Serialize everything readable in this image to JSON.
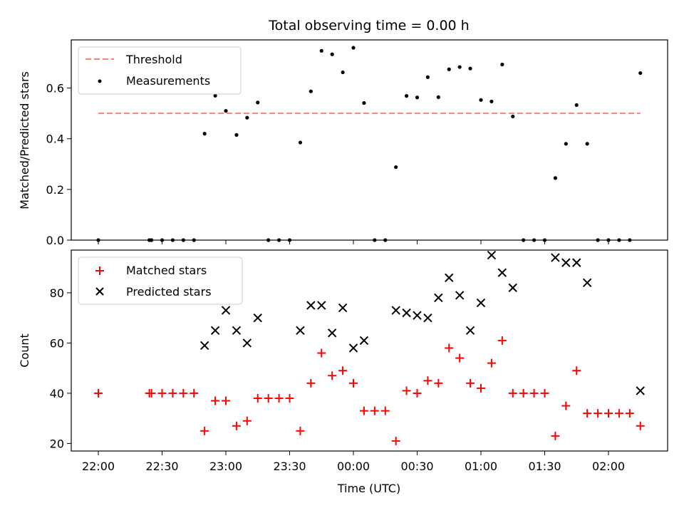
{
  "chart_data": {
    "type": "scatter",
    "title": "Total observing time = 0.00 h",
    "xlabel": "Time (UTC)",
    "x_tick_labels": [
      "22:00",
      "22:30",
      "23:00",
      "23:30",
      "00:00",
      "00:30",
      "01:00",
      "01:30",
      "02:00"
    ],
    "colors": {
      "threshold": "#ff7f7f",
      "measurements": "#000000",
      "matched": "#ff0000",
      "predicted": "#000000"
    },
    "panels": [
      {
        "ylabel": "Matched/Predicted stars",
        "ylim": [
          0,
          0.79
        ],
        "yticks": [
          0.0,
          0.2,
          0.4,
          0.6
        ],
        "ytick_labels": [
          "0.0",
          "0.2",
          "0.4",
          "0.6"
        ],
        "legend": [
          "Threshold",
          "Measurements"
        ],
        "legend_loc": "upper left",
        "threshold": {
          "name": "Threshold",
          "y": 0.5,
          "x_start": "22:00",
          "x_end": "02:15"
        },
        "series": [
          {
            "name": "Measurements",
            "marker": "dot",
            "points": [
              [
                "22:00",
                0.0
              ],
              [
                "22:24",
                0.0
              ],
              [
                "22:25",
                0.0
              ],
              [
                "22:30",
                0.0
              ],
              [
                "22:35",
                0.0
              ],
              [
                "22:40",
                0.0
              ],
              [
                "22:45",
                0.0
              ],
              [
                "22:50",
                0.42
              ],
              [
                "22:55",
                0.57
              ],
              [
                "23:00",
                0.51
              ],
              [
                "23:05",
                0.415
              ],
              [
                "23:10",
                0.483
              ],
              [
                "23:15",
                0.543
              ],
              [
                "23:20",
                0.0
              ],
              [
                "23:25",
                0.0
              ],
              [
                "23:30",
                0.0
              ],
              [
                "23:35",
                0.385
              ],
              [
                "23:40",
                0.587
              ],
              [
                "23:45",
                0.747
              ],
              [
                "23:50",
                0.733
              ],
              [
                "23:55",
                0.662
              ],
              [
                "00:00",
                0.759
              ],
              [
                "00:05",
                0.541
              ],
              [
                "00:10",
                0.0
              ],
              [
                "00:15",
                0.0
              ],
              [
                "00:20",
                0.288
              ],
              [
                "00:25",
                0.569
              ],
              [
                "00:30",
                0.563
              ],
              [
                "00:35",
                0.643
              ],
              [
                "00:40",
                0.564
              ],
              [
                "00:45",
                0.674
              ],
              [
                "00:50",
                0.683
              ],
              [
                "00:55",
                0.677
              ],
              [
                "01:00",
                0.553
              ],
              [
                "01:05",
                0.547
              ],
              [
                "01:10",
                0.693
              ],
              [
                "01:15",
                0.488
              ],
              [
                "01:20",
                0.0
              ],
              [
                "01:25",
                0.0
              ],
              [
                "01:30",
                0.0
              ],
              [
                "01:35",
                0.245
              ],
              [
                "01:40",
                0.38
              ],
              [
                "01:45",
                0.533
              ],
              [
                "01:50",
                0.38
              ],
              [
                "01:55",
                0.0
              ],
              [
                "02:00",
                0.0
              ],
              [
                "02:05",
                0.0
              ],
              [
                "02:10",
                0.0
              ],
              [
                "02:15",
                0.659
              ]
            ]
          }
        ]
      },
      {
        "ylabel": "Count",
        "ylim": [
          17,
          97
        ],
        "yticks": [
          20,
          40,
          60,
          80
        ],
        "ytick_labels": [
          "20",
          "40",
          "60",
          "80"
        ],
        "legend": [
          "Matched stars",
          "Predicted stars"
        ],
        "legend_loc": "upper left",
        "series": [
          {
            "name": "Matched stars",
            "marker": "plus",
            "points": [
              [
                "22:00",
                40
              ],
              [
                "22:24",
                40
              ],
              [
                "22:25",
                40
              ],
              [
                "22:30",
                40
              ],
              [
                "22:35",
                40
              ],
              [
                "22:40",
                40
              ],
              [
                "22:45",
                40
              ],
              [
                "22:50",
                25
              ],
              [
                "22:55",
                37
              ],
              [
                "23:00",
                37
              ],
              [
                "23:05",
                27
              ],
              [
                "23:10",
                29
              ],
              [
                "23:15",
                38
              ],
              [
                "23:20",
                38
              ],
              [
                "23:25",
                38
              ],
              [
                "23:30",
                38
              ],
              [
                "23:35",
                25
              ],
              [
                "23:40",
                44
              ],
              [
                "23:45",
                56
              ],
              [
                "23:50",
                47
              ],
              [
                "23:55",
                49
              ],
              [
                "00:00",
                44
              ],
              [
                "00:05",
                33
              ],
              [
                "00:10",
                33
              ],
              [
                "00:15",
                33
              ],
              [
                "00:20",
                21
              ],
              [
                "00:25",
                41
              ],
              [
                "00:30",
                40
              ],
              [
                "00:35",
                45
              ],
              [
                "00:40",
                44
              ],
              [
                "00:45",
                58
              ],
              [
                "00:50",
                54
              ],
              [
                "00:55",
                44
              ],
              [
                "01:00",
                42
              ],
              [
                "01:05",
                52
              ],
              [
                "01:10",
                61
              ],
              [
                "01:15",
                40
              ],
              [
                "01:20",
                40
              ],
              [
                "01:25",
                40
              ],
              [
                "01:30",
                40
              ],
              [
                "01:35",
                23
              ],
              [
                "01:40",
                35
              ],
              [
                "01:45",
                49
              ],
              [
                "01:50",
                32
              ],
              [
                "01:55",
                32
              ],
              [
                "02:00",
                32
              ],
              [
                "02:05",
                32
              ],
              [
                "02:10",
                32
              ],
              [
                "02:15",
                27
              ]
            ]
          },
          {
            "name": "Predicted stars",
            "marker": "x",
            "points": [
              [
                "22:50",
                59
              ],
              [
                "22:55",
                65
              ],
              [
                "23:00",
                73
              ],
              [
                "23:05",
                65
              ],
              [
                "23:10",
                60
              ],
              [
                "23:15",
                70
              ],
              [
                "23:35",
                65
              ],
              [
                "23:40",
                75
              ],
              [
                "23:45",
                75
              ],
              [
                "23:50",
                64
              ],
              [
                "23:55",
                74
              ],
              [
                "00:00",
                58
              ],
              [
                "00:05",
                61
              ],
              [
                "00:20",
                73
              ],
              [
                "00:25",
                72
              ],
              [
                "00:30",
                71
              ],
              [
                "00:35",
                70
              ],
              [
                "00:40",
                78
              ],
              [
                "00:45",
                86
              ],
              [
                "00:50",
                79
              ],
              [
                "00:55",
                65
              ],
              [
                "01:00",
                76
              ],
              [
                "01:05",
                95
              ],
              [
                "01:10",
                88
              ],
              [
                "01:15",
                82
              ],
              [
                "01:35",
                94
              ],
              [
                "01:40",
                92
              ],
              [
                "01:45",
                92
              ],
              [
                "01:50",
                84
              ],
              [
                "02:15",
                41
              ]
            ]
          }
        ]
      }
    ]
  }
}
